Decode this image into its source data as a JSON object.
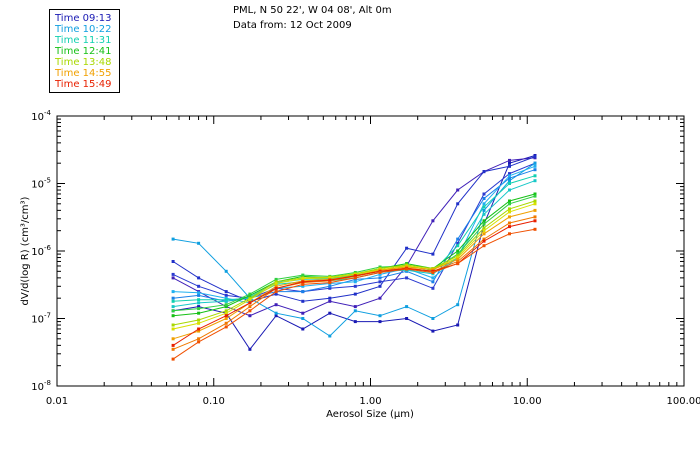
{
  "header": {
    "location": "PML, N 50 22', W 04 08', Alt 0m",
    "date": "Data from: 12 Oct 2009"
  },
  "legend": [
    {
      "label": "Time 09:13",
      "color": "#1a1ab4"
    },
    {
      "label": "Time 10:22",
      "color": "#0f9fe0"
    },
    {
      "label": "Time 11:31",
      "color": "#12d0b0"
    },
    {
      "label": "Time 12:41",
      "color": "#16c016"
    },
    {
      "label": "Time 13:48",
      "color": "#a8d800"
    },
    {
      "label": "Time 14:55",
      "color": "#f0a000"
    },
    {
      "label": "Time 15:49",
      "color": "#e82000"
    }
  ],
  "chart_data": {
    "type": "line",
    "title": "",
    "xlabel": "Aerosol Size (µm)",
    "ylabel": "dV/d(log R) (cm³/cm³)",
    "xscale": "log",
    "yscale": "log",
    "xlim": [
      0.01,
      100
    ],
    "ylim": [
      1e-08,
      0.0001
    ],
    "xticks": [
      {
        "value": 0.01,
        "label": "0.01"
      },
      {
        "value": 0.1,
        "label": "0.10"
      },
      {
        "value": 1,
        "label": "1.00"
      },
      {
        "value": 10,
        "label": "10.00"
      },
      {
        "value": 100,
        "label": "100.00"
      }
    ],
    "yticks": [
      {
        "value": 1e-08,
        "base": "10",
        "exp": "-8"
      },
      {
        "value": 1e-07,
        "base": "10",
        "exp": "-7"
      },
      {
        "value": 1e-06,
        "base": "10",
        "exp": "-6"
      },
      {
        "value": 1e-05,
        "base": "10",
        "exp": "-5"
      },
      {
        "value": 0.0001,
        "base": "10",
        "exp": "-4"
      }
    ],
    "x": [
      0.055,
      0.08,
      0.12,
      0.17,
      0.25,
      0.37,
      0.55,
      0.8,
      1.15,
      1.7,
      2.5,
      3.6,
      5.3,
      7.7,
      11.2
    ],
    "series": [
      {
        "name": "Time 09:13",
        "color": "#1a1ab4",
        "values": [
          1.3e-07,
          1.5e-07,
          1.2e-07,
          3.5e-08,
          1.1e-07,
          7e-08,
          1.2e-07,
          9e-08,
          9e-08,
          1e-07,
          6.5e-08,
          8e-08,
          2.5e-06,
          2e-05,
          2.6e-05
        ]
      },
      {
        "name": "Time 09:13",
        "color": "#4020b8",
        "values": [
          4e-07,
          2.5e-07,
          1.5e-07,
          1.1e-07,
          1.6e-07,
          1.2e-07,
          1.8e-07,
          1.5e-07,
          2e-07,
          6e-07,
          2.8e-06,
          8e-06,
          1.5e-05,
          2.2e-05,
          2.4e-05
        ]
      },
      {
        "name": "Time 09:13",
        "color": "#2030c8",
        "values": [
          7e-07,
          4e-07,
          2.5e-07,
          1.8e-07,
          2.3e-07,
          1.8e-07,
          2e-07,
          2.3e-07,
          3e-07,
          1.1e-06,
          9e-07,
          5e-06,
          1.5e-05,
          1.8e-05,
          2.5e-05
        ]
      },
      {
        "name": "Time 09:13",
        "color": "#2a3ad0",
        "values": [
          4.5e-07,
          3e-07,
          2.2e-07,
          2e-07,
          2.8e-07,
          2.5e-07,
          2.8e-07,
          3e-07,
          3.5e-07,
          4e-07,
          2.8e-07,
          1.3e-06,
          7e-06,
          1.4e-05,
          2e-05
        ]
      },
      {
        "name": "Time 10:22",
        "color": "#0f9fe0",
        "values": [
          1.5e-06,
          1.3e-06,
          5e-07,
          2e-07,
          1.2e-07,
          1e-07,
          5.5e-08,
          1.3e-07,
          1.1e-07,
          1.5e-07,
          1e-07,
          1.6e-07,
          4e-06,
          1.1e-05,
          2e-05
        ]
      },
      {
        "name": "Time 10:22",
        "color": "#1a80e8",
        "values": [
          2e-07,
          2.2e-07,
          1.8e-07,
          2e-07,
          2.5e-07,
          2.5e-07,
          3e-07,
          3.8e-07,
          4e-07,
          5e-07,
          3.5e-07,
          1.5e-06,
          6e-06,
          1.2e-05,
          1.6e-05
        ]
      },
      {
        "name": "Time 10:22",
        "color": "#20b0f0",
        "values": [
          2.5e-07,
          2.4e-07,
          2e-07,
          1.7e-07,
          2.8e-07,
          3e-07,
          3.3e-07,
          3.5e-07,
          4.5e-07,
          5.5e-07,
          4e-07,
          8e-07,
          5e-06,
          1.3e-05,
          1.8e-05
        ]
      },
      {
        "name": "Time 11:31",
        "color": "#12d0b0",
        "values": [
          1.8e-07,
          1.9e-07,
          1.9e-07,
          2e-07,
          3.2e-07,
          3.5e-07,
          3.6e-07,
          4e-07,
          4.8e-07,
          5.5e-07,
          5e-07,
          1.2e-06,
          4.5e-06,
          1e-05,
          1.3e-05
        ]
      },
      {
        "name": "Time 11:31",
        "color": "#18c8c8",
        "values": [
          1.5e-07,
          1.7e-07,
          1.8e-07,
          2.1e-07,
          3.4e-07,
          3.8e-07,
          3.9e-07,
          4.4e-07,
          5e-07,
          5.2e-07,
          4.6e-07,
          8e-07,
          3.5e-06,
          8e-06,
          1.1e-05
        ]
      },
      {
        "name": "Time 12:41",
        "color": "#16c016",
        "values": [
          1.1e-07,
          1.2e-07,
          1.5e-07,
          2.2e-07,
          3.5e-07,
          4.2e-07,
          4e-07,
          4.5e-07,
          5.5e-07,
          6.5e-07,
          5.5e-07,
          1e-06,
          2.8e-06,
          5.5e-06,
          7e-06
        ]
      },
      {
        "name": "Time 12:41",
        "color": "#30d040",
        "values": [
          1.3e-07,
          1.4e-07,
          1.6e-07,
          2.3e-07,
          3.8e-07,
          4.4e-07,
          4.2e-07,
          4.8e-07,
          5.8e-07,
          6e-07,
          5.2e-07,
          9e-07,
          2.5e-06,
          5e-06,
          6.5e-06
        ]
      },
      {
        "name": "Time 13:48",
        "color": "#a8d800",
        "values": [
          8e-08,
          9.5e-08,
          1.3e-07,
          2e-07,
          3.5e-07,
          4e-07,
          4.1e-07,
          4.6e-07,
          5.5e-07,
          6.2e-07,
          5.5e-07,
          8.5e-07,
          2.2e-06,
          4.2e-06,
          5.5e-06
        ]
      },
      {
        "name": "Time 13:48",
        "color": "#d8e000",
        "values": [
          7e-08,
          8.5e-08,
          1.2e-07,
          1.9e-07,
          3.3e-07,
          3.9e-07,
          4e-07,
          4.5e-07,
          5.3e-07,
          6e-07,
          5.3e-07,
          8e-07,
          2e-06,
          3.8e-06,
          5e-06
        ]
      },
      {
        "name": "Time 14:55",
        "color": "#f0a000",
        "values": [
          5e-08,
          6.5e-08,
          1e-07,
          1.7e-07,
          3e-07,
          3.6e-07,
          3.8e-07,
          4.3e-07,
          5.2e-07,
          5.8e-07,
          5.3e-07,
          7.5e-07,
          1.8e-06,
          3.2e-06,
          4e-06
        ]
      },
      {
        "name": "Time 14:55",
        "color": "#f07800",
        "values": [
          3.5e-08,
          5e-08,
          8.5e-08,
          1.5e-07,
          2.8e-07,
          3.4e-07,
          3.6e-07,
          4.2e-07,
          5e-07,
          5.6e-07,
          5e-07,
          7e-07,
          1.5e-06,
          2.6e-06,
          3.2e-06
        ]
      },
      {
        "name": "Time 15:49",
        "color": "#e82000",
        "values": [
          4e-08,
          7e-08,
          1.1e-07,
          1.7e-07,
          2.8e-07,
          3.5e-07,
          3.7e-07,
          4.3e-07,
          5e-07,
          5.5e-07,
          5e-07,
          6.5e-07,
          1.4e-06,
          2.3e-06,
          2.8e-06
        ]
      },
      {
        "name": "Time 15:49",
        "color": "#f05000",
        "values": [
          2.5e-08,
          4.5e-08,
          7.5e-08,
          1.3e-07,
          2.5e-07,
          3.2e-07,
          3.4e-07,
          4e-07,
          4.8e-07,
          5.4e-07,
          4.8e-07,
          6.5e-07,
          1.2e-06,
          1.8e-06,
          2.1e-06
        ]
      }
    ]
  }
}
